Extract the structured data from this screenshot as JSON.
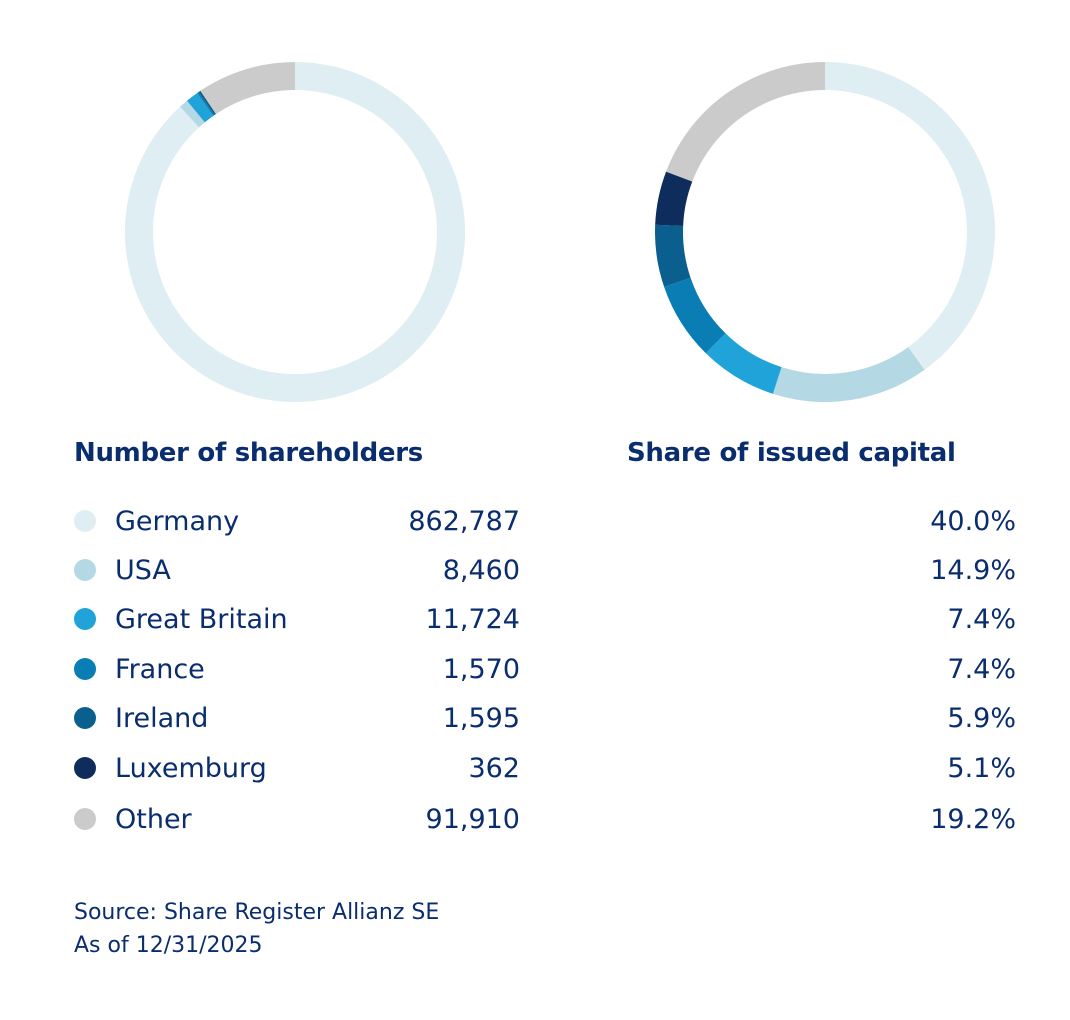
{
  "chart_data": [
    {
      "type": "pie",
      "title": "Number of shareholders",
      "categories": [
        "Germany",
        "USA",
        "Great Britain",
        "France",
        "Ireland",
        "Luxemburg",
        "Other"
      ],
      "values": [
        862787,
        8460,
        11724,
        1570,
        1595,
        362,
        91910
      ],
      "value_labels": [
        "862,787",
        "8,460",
        "11,724",
        "1,570",
        "1,595",
        "362",
        "91,910"
      ]
    },
    {
      "type": "pie",
      "title": "Share of issued capital",
      "categories": [
        "Germany",
        "USA",
        "Great Britain",
        "France",
        "Ireland",
        "Luxemburg",
        "Other"
      ],
      "values": [
        40.0,
        14.9,
        7.4,
        7.4,
        5.9,
        5.1,
        19.2
      ],
      "value_labels": [
        "40.0%",
        "14.9%",
        "7.4%",
        "7.4%",
        "5.9%",
        "5.1%",
        "19.2%"
      ]
    }
  ],
  "colors": [
    "#dfeef2",
    "#b5d9e4",
    "#1fa3d8",
    "#0a7db4",
    "#0b5f8f",
    "#0f2d5c",
    "#cbcbcb"
  ],
  "footer": {
    "source": "Source: Share Register Allianz SE",
    "date": "As of 12/31/2025"
  }
}
